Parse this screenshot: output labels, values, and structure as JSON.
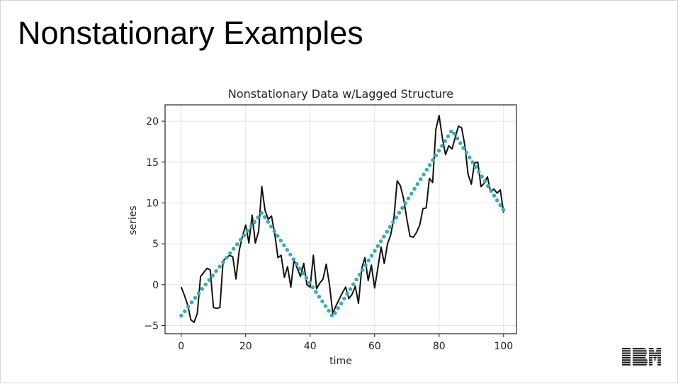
{
  "slide": {
    "title": "Nonstationary Examples",
    "logo_text": "IBM"
  },
  "colors": {
    "series": "#111111",
    "trend": "#3aacb0",
    "grid": "#e3e3e3",
    "axis": "#222222"
  },
  "chart_data": {
    "type": "line",
    "title": "Nonstationary Data w/Lagged Structure",
    "xlabel": "time",
    "ylabel": "series",
    "xlim": [
      -5,
      104
    ],
    "ylim": [
      -6,
      22
    ],
    "xticks": [
      0,
      20,
      40,
      60,
      80,
      100
    ],
    "yticks": [
      -5,
      0,
      5,
      10,
      15,
      20
    ],
    "grid": true,
    "legend": "none",
    "series": [
      {
        "style": "solid",
        "x": [
          0,
          1,
          2,
          3,
          4,
          5,
          6,
          7,
          8,
          9,
          10,
          11,
          12,
          13,
          14,
          15,
          16,
          17,
          18,
          19,
          20,
          21,
          22,
          23,
          24,
          25,
          26,
          27,
          28,
          29,
          30,
          31,
          32,
          33,
          34,
          35,
          36,
          37,
          38,
          39,
          40,
          41,
          42,
          43,
          44,
          45,
          46,
          47,
          48,
          49,
          50,
          51,
          52,
          53,
          54,
          55,
          56,
          57,
          58,
          59,
          60,
          61,
          62,
          63,
          64,
          65,
          66,
          67,
          68,
          69,
          70,
          71,
          72,
          73,
          74,
          75,
          76,
          77,
          78,
          79,
          80,
          81,
          82,
          83,
          84,
          85,
          86,
          87,
          88,
          89,
          90,
          91,
          92,
          93,
          94,
          95,
          96,
          97,
          98,
          99,
          100
        ],
        "y": [
          -0.3,
          -1.3,
          -2.5,
          -4.3,
          -4.6,
          -3.5,
          1.0,
          1.5,
          2.0,
          1.8,
          -2.8,
          -2.9,
          -2.8,
          2.9,
          3.3,
          3.6,
          3.4,
          0.7,
          4.2,
          5.9,
          7.3,
          5.1,
          8.5,
          5.1,
          6.5,
          12.0,
          9.1,
          8.0,
          8.4,
          6.3,
          3.3,
          3.6,
          0.9,
          2.2,
          -0.3,
          3.0,
          2.0,
          1.0,
          2.6,
          0.0,
          -0.3,
          3.6,
          -0.5,
          0.2,
          0.7,
          2.5,
          0.0,
          -3.5,
          -2.6,
          -1.8,
          -1.0,
          -0.3,
          -1.7,
          -1.2,
          -0.2,
          -2.3,
          2.0,
          3.3,
          0.5,
          2.4,
          -0.4,
          2.0,
          4.6,
          2.6,
          5.0,
          6.1,
          8.2,
          12.7,
          12.1,
          10.5,
          8.0,
          5.9,
          5.8,
          6.4,
          7.3,
          9.3,
          9.4,
          13.0,
          12.5,
          19.0,
          20.7,
          18.0,
          15.9,
          17.0,
          16.6,
          18.0,
          19.4,
          19.2,
          17.0,
          13.5,
          12.3,
          14.9,
          15.0,
          12.0,
          12.4,
          13.2,
          11.3,
          11.7,
          11.2,
          11.6,
          8.8
        ]
      },
      {
        "style": "dotted",
        "x": [
          0,
          25,
          47,
          84,
          100
        ],
        "y": [
          -3.8,
          8.8,
          -3.9,
          18.9,
          9.1
        ]
      }
    ]
  }
}
